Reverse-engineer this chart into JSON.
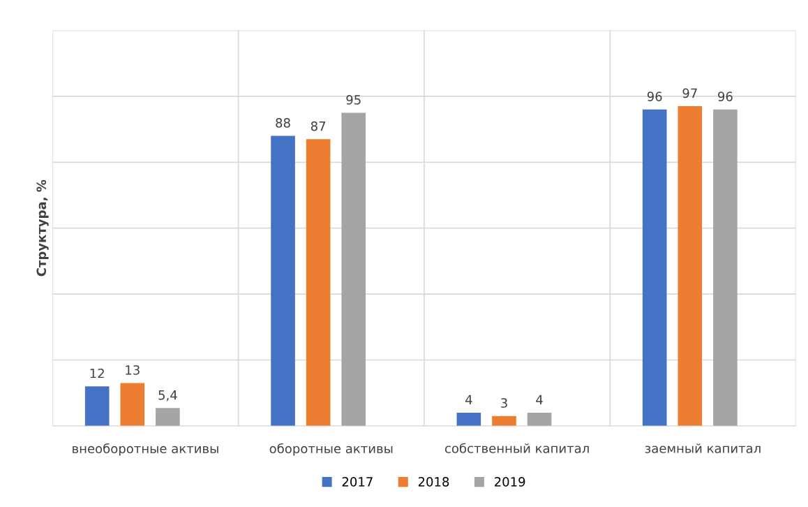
{
  "chart_data": {
    "type": "bar",
    "ylabel": "Структура, %",
    "categories": [
      "внеоборотные активы",
      "оборотные активы",
      "собственный капитал",
      "заемный капитал"
    ],
    "series": [
      {
        "name": "2017",
        "color": "#4472c4",
        "values": [
          12,
          88,
          4,
          96
        ],
        "value_labels": [
          "12",
          "88",
          "4",
          "96"
        ]
      },
      {
        "name": "2018",
        "color": "#ed7d31",
        "values": [
          13,
          87,
          3,
          97
        ],
        "value_labels": [
          "13",
          "87",
          "3",
          "97"
        ]
      },
      {
        "name": "2019",
        "color": "#a5a5a5",
        "values": [
          5.4,
          95,
          4,
          96
        ],
        "value_labels": [
          "5,4",
          "95",
          "4",
          "96"
        ]
      }
    ],
    "ylim": [
      0,
      120
    ],
    "yticks": [
      {
        "value": 0,
        "label": null
      },
      {
        "value": 20,
        "label": null
      },
      {
        "value": 40,
        "label": null
      },
      {
        "value": 60,
        "label": null
      },
      {
        "value": 80,
        "label": null
      },
      {
        "value": 100,
        "label": null
      },
      {
        "value": 120,
        "label": null
      }
    ],
    "tick_labels": "x",
    "grid": true,
    "legend": "bottom"
  }
}
